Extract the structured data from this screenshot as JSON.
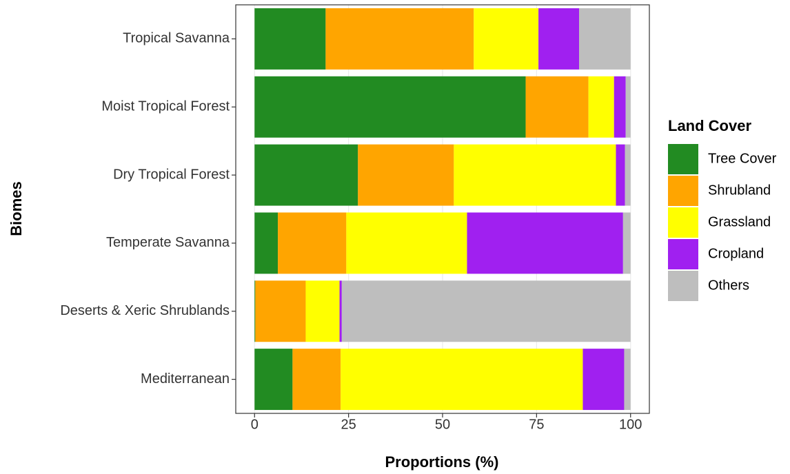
{
  "chart_data": {
    "type": "stacked-barh",
    "xlabel": "Proportions (%)",
    "ylabel": "Biomes",
    "legend_title": "Land Cover",
    "categories": [
      "Tropical Savanna",
      "Moist Tropical Forest",
      "Dry Tropical Forest",
      "Temperate Savanna",
      "Deserts & Xeric Shrublands",
      "Mediterranean"
    ],
    "series": [
      {
        "name": "Tree Cover",
        "color": "#228b22",
        "values": [
          18.9,
          72.1,
          27.5,
          6.2,
          0.2,
          10.1
        ]
      },
      {
        "name": "Shrubland",
        "color": "#ffa500",
        "values": [
          39.4,
          16.7,
          25.5,
          18.2,
          13.4,
          12.8
        ]
      },
      {
        "name": "Grassland",
        "color": "#ffff00",
        "values": [
          17.2,
          6.8,
          43.1,
          32.1,
          9.0,
          64.4
        ]
      },
      {
        "name": "Cropland",
        "color": "#a020f0",
        "values": [
          10.8,
          3.1,
          2.4,
          41.5,
          0.6,
          11.0
        ]
      },
      {
        "name": "Others",
        "color": "#bebebe",
        "values": [
          13.7,
          1.3,
          1.5,
          2.0,
          76.8,
          1.7
        ]
      }
    ],
    "xlim": [
      -5,
      105
    ],
    "xticks": [
      0,
      25,
      50,
      75,
      100
    ],
    "grid": true,
    "legend": "right"
  }
}
